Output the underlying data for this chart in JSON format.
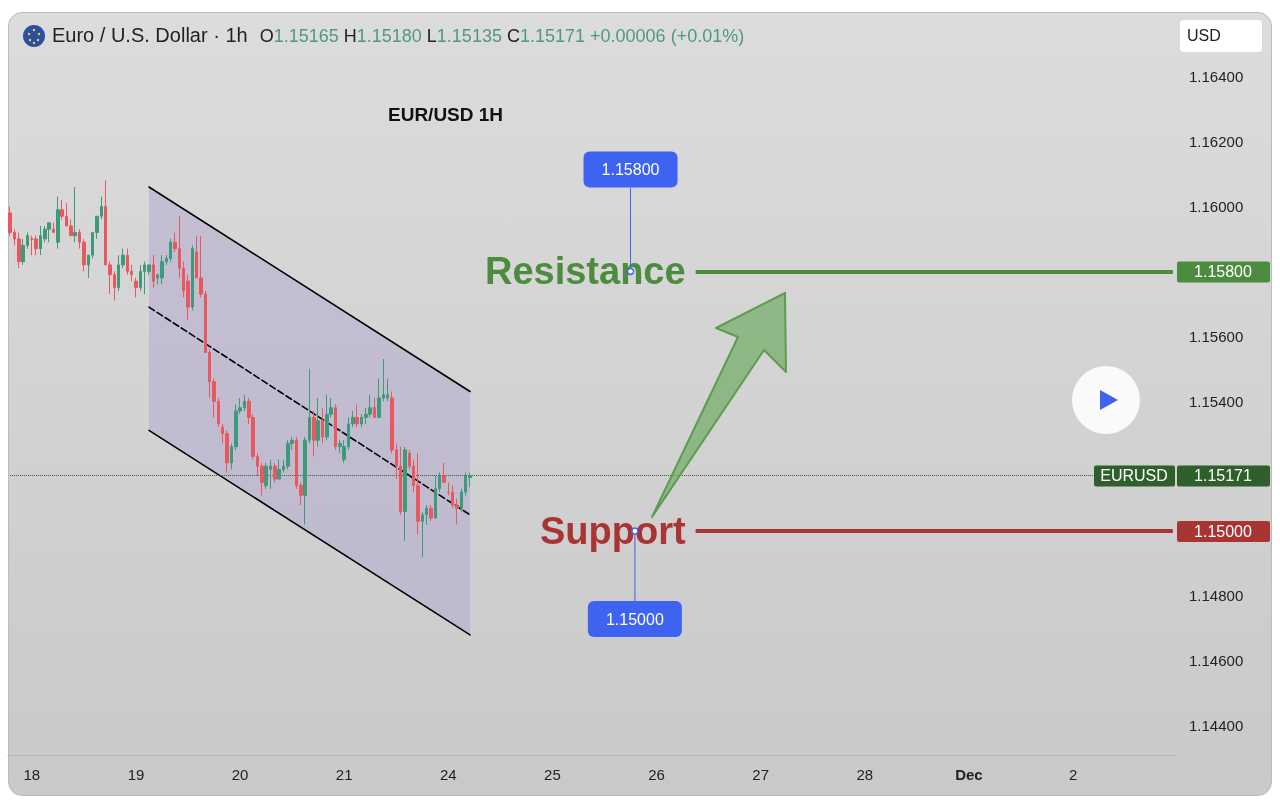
{
  "chart_data": {
    "type": "candlestick",
    "title": "EUR/USD 1H",
    "subtitle": "Euro / U.S. Dollar · 1h",
    "annotations": [
      "O1.15165 H1.15180 L1.15135 C1.15171 +0.00006 (+0.01%)",
      "USD",
      "1.15800",
      "1.15000",
      "1.15171"
    ],
    "categories": [
      null,
      null,
      null,
      null,
      null,
      "18",
      null,
      null,
      null,
      null,
      null,
      null,
      null,
      null,
      null,
      null,
      null,
      null,
      null,
      null,
      null,
      null,
      null,
      null,
      null,
      null,
      null,
      null,
      null,
      "19",
      null,
      null,
      null,
      null,
      null,
      null,
      null,
      null,
      null,
      null,
      null,
      null,
      null,
      null,
      null,
      null,
      null,
      null,
      null,
      null,
      null,
      null,
      null,
      "20",
      null,
      null,
      null,
      null,
      null,
      null,
      null,
      null,
      null,
      null,
      null,
      null,
      null,
      null,
      null,
      null,
      null,
      null,
      null,
      null,
      null,
      null,
      null,
      "21",
      null,
      null,
      null,
      null,
      null,
      null,
      null,
      null,
      null,
      null,
      null,
      null,
      null,
      null,
      null,
      null,
      null,
      null,
      null,
      null,
      null,
      null,
      null,
      "24",
      null,
      null,
      null,
      null,
      null,
      null,
      null,
      null,
      null,
      null,
      null,
      null,
      null,
      null,
      null,
      null,
      null,
      null,
      null,
      null,
      null,
      null,
      null,
      "25",
      null,
      null,
      null,
      null,
      null,
      null,
      null,
      null,
      null,
      null,
      null,
      null,
      null,
      null,
      null,
      null,
      null,
      null,
      null,
      null,
      null,
      null,
      null,
      "26",
      null,
      null,
      null,
      null,
      null,
      null,
      null,
      null,
      null,
      null,
      null,
      null,
      null,
      null,
      null,
      null,
      null,
      null,
      null,
      null,
      null,
      null,
      null,
      "27",
      null,
      null,
      null,
      null,
      null,
      null,
      null,
      null,
      null,
      null,
      null,
      null,
      null,
      null,
      null,
      null,
      null,
      null,
      null,
      null,
      null,
      null,
      null,
      "28",
      null,
      null,
      null,
      null,
      null,
      null,
      null,
      null,
      null,
      null,
      null,
      null,
      null,
      null,
      null,
      null,
      null,
      null,
      null,
      null,
      null,
      null,
      null,
      "Dec",
      null,
      null,
      null,
      null,
      null,
      null,
      null,
      null,
      null,
      null,
      null,
      null,
      null,
      null,
      null,
      null,
      null,
      null,
      null,
      null,
      null,
      null,
      null,
      "2",
      null,
      null,
      null,
      null,
      null,
      null,
      null,
      null,
      null,
      null,
      null,
      null,
      null,
      null,
      null,
      null,
      null,
      null,
      null,
      null,
      null,
      null,
      null
    ],
    "ylim": [
      1.1431,
      1.1659
    ],
    "yticks": [
      {
        "value": 1.144,
        "label": "1.14400"
      },
      {
        "value": 1.146,
        "label": "1.14600"
      },
      {
        "value": 1.148,
        "label": "1.14800"
      },
      {
        "value": 1.154,
        "label": "1.15400"
      },
      {
        "value": 1.156,
        "label": "1.15600"
      },
      {
        "value": 1.16,
        "label": "1.16000"
      },
      {
        "value": 1.162,
        "label": "1.16200"
      },
      {
        "value": 1.164,
        "label": "1.16400"
      }
    ],
    "ohlc": [
      [
        1.1598,
        1.16,
        1.1591,
        1.1592
      ],
      [
        1.1592,
        1.1593,
        1.1588,
        1.159
      ],
      [
        1.159,
        1.1592,
        1.1581,
        1.1583
      ],
      [
        1.1583,
        1.159,
        1.1582,
        1.1588
      ],
      [
        1.1588,
        1.1592,
        1.1587,
        1.1591
      ],
      [
        1.159,
        1.1591,
        1.1585,
        1.159
      ],
      [
        1.159,
        1.1591,
        1.1585,
        1.1587
      ],
      [
        1.1587,
        1.1594,
        1.1585,
        1.1591
      ],
      [
        1.159,
        1.1594,
        1.1589,
        1.1593
      ],
      [
        1.1593,
        1.1595,
        1.1589,
        1.1595
      ],
      [
        1.1593,
        1.1595,
        1.1592,
        1.1592
      ],
      [
        1.1589,
        1.1603,
        1.1587,
        1.1599
      ],
      [
        1.1599,
        1.1602,
        1.1596,
        1.1597
      ],
      [
        1.1597,
        1.1601,
        1.1594,
        1.1594
      ],
      [
        1.1594,
        1.1596,
        1.1591,
        1.1591
      ],
      [
        1.1591,
        1.1606,
        1.1589,
        1.1592
      ],
      [
        1.1592,
        1.1593,
        1.1587,
        1.1589
      ],
      [
        1.1589,
        1.159,
        1.158,
        1.1582
      ],
      [
        1.1582,
        1.1585,
        1.1578,
        1.1585
      ],
      [
        1.1585,
        1.1592,
        1.1584,
        1.1592
      ],
      [
        1.1592,
        1.1597,
        1.159,
        1.1597
      ],
      [
        1.1597,
        1.1603,
        1.1596,
        1.16
      ],
      [
        1.16,
        1.1608,
        1.1582,
        1.1582
      ],
      [
        1.1582,
        1.1583,
        1.1573,
        1.1579
      ],
      [
        1.1579,
        1.158,
        1.1571,
        1.1575
      ],
      [
        1.1575,
        1.1585,
        1.1574,
        1.1582
      ],
      [
        1.1582,
        1.1587,
        1.1581,
        1.1585
      ],
      [
        1.1585,
        1.1587,
        1.1579,
        1.158
      ],
      [
        1.158,
        1.1582,
        1.1577,
        1.1579
      ],
      [
        1.1577,
        1.1578,
        1.1572,
        1.1575
      ],
      [
        1.1575,
        1.1582,
        1.1574,
        1.158
      ],
      [
        1.158,
        1.1583,
        1.1573,
        1.1582
      ],
      [
        1.158,
        1.1582,
        1.1579,
        1.1582
      ],
      [
        1.1582,
        1.1585,
        1.1575,
        1.1577
      ],
      [
        1.1578,
        1.1579,
        1.1576,
        1.1579
      ],
      [
        1.1578,
        1.1585,
        1.1576,
        1.1583
      ],
      [
        1.1583,
        1.1585,
        1.1582,
        1.1584
      ],
      [
        1.1584,
        1.159,
        1.1583,
        1.1589
      ],
      [
        1.1589,
        1.1592,
        1.1586,
        1.1587
      ],
      [
        1.1587,
        1.1597,
        1.1578,
        1.1581
      ],
      [
        1.1581,
        1.1583,
        1.1572,
        1.1574
      ],
      [
        1.1577,
        1.1579,
        1.1565,
        1.1569
      ],
      [
        1.1569,
        1.1588,
        1.1568,
        1.1587
      ],
      [
        1.1586,
        1.1591,
        1.1578,
        1.1578
      ],
      [
        1.1578,
        1.1591,
        1.1572,
        1.1573
      ],
      [
        1.1573,
        1.1574,
        1.1555,
        1.1555
      ],
      [
        1.1555,
        1.1556,
        1.1541,
        1.1546
      ],
      [
        1.1546,
        1.1547,
        1.1535,
        1.154
      ],
      [
        1.154,
        1.1541,
        1.1532,
        1.1533
      ],
      [
        1.1532,
        1.1533,
        1.1527,
        1.153
      ],
      [
        1.153,
        1.1531,
        1.1518,
        1.1521
      ],
      [
        1.1521,
        1.1527,
        1.1519,
        1.1526
      ],
      [
        1.1526,
        1.1539,
        1.1525,
        1.1537
      ],
      [
        1.1537,
        1.1541,
        1.1536,
        1.1538
      ],
      [
        1.1538,
        1.1542,
        1.1537,
        1.154
      ],
      [
        1.154,
        1.1541,
        1.1533,
        1.1535
      ],
      [
        1.1535,
        1.1536,
        1.1522,
        1.1523
      ],
      [
        1.1523,
        1.1524,
        1.1517,
        1.152
      ],
      [
        1.152,
        1.1521,
        1.1511,
        1.1515
      ],
      [
        1.1514,
        1.1521,
        1.1513,
        1.152
      ],
      [
        1.1519,
        1.1522,
        1.1513,
        1.152
      ],
      [
        1.152,
        1.1521,
        1.1515,
        1.1516
      ],
      [
        1.1516,
        1.1522,
        1.1516,
        1.1519
      ],
      [
        1.1519,
        1.1522,
        1.1518,
        1.152
      ],
      [
        1.152,
        1.1528,
        1.1519,
        1.1527
      ],
      [
        1.1527,
        1.1529,
        1.1525,
        1.1528
      ],
      [
        1.1528,
        1.1529,
        1.1513,
        1.1514
      ],
      [
        1.1514,
        1.1515,
        1.1508,
        1.1511
      ],
      [
        1.1511,
        1.1529,
        1.1502,
        1.1528
      ],
      [
        1.1528,
        1.155,
        1.1527,
        1.1535
      ],
      [
        1.1535,
        1.1537,
        1.1523,
        1.1528
      ],
      [
        1.1528,
        1.1541,
        1.1526,
        1.1534
      ],
      [
        1.1534,
        1.1538,
        1.1527,
        1.1529
      ],
      [
        1.1529,
        1.1542,
        1.1528,
        1.1536
      ],
      [
        1.1536,
        1.1541,
        1.1535,
        1.1538
      ],
      [
        1.1538,
        1.1539,
        1.1525,
        1.1526
      ],
      [
        1.1526,
        1.1528,
        1.1524,
        1.1527
      ],
      [
        1.1522,
        1.1528,
        1.1521,
        1.1526
      ],
      [
        1.1526,
        1.1535,
        1.1525,
        1.1533
      ],
      [
        1.1533,
        1.1537,
        1.1532,
        1.1535
      ],
      [
        1.1535,
        1.1539,
        1.1532,
        1.1533
      ],
      [
        1.1533,
        1.1536,
        1.1532,
        1.1535
      ],
      [
        1.1535,
        1.1538,
        1.1533,
        1.1536
      ],
      [
        1.1536,
        1.1542,
        1.1535,
        1.1538
      ],
      [
        1.1538,
        1.1541,
        1.1535,
        1.1535
      ],
      [
        1.1535,
        1.1547,
        1.1535,
        1.1541
      ],
      [
        1.1541,
        1.1553,
        1.154,
        1.1542
      ],
      [
        1.1541,
        1.1547,
        1.154,
        1.1542
      ],
      [
        1.1541,
        1.1543,
        1.1524,
        1.1525
      ],
      [
        1.1525,
        1.1527,
        1.1516,
        1.152
      ],
      [
        1.152,
        1.1526,
        1.1505,
        1.1506
      ],
      [
        1.1506,
        1.1526,
        1.1497,
        1.1525
      ],
      [
        1.1524,
        1.1525,
        1.1519,
        1.152
      ],
      [
        1.152,
        1.1522,
        1.1512,
        1.1514
      ],
      [
        1.1514,
        1.1524,
        1.1499,
        1.1503
      ],
      [
        1.1503,
        1.1506,
        1.1492,
        1.1505
      ],
      [
        1.1505,
        1.1508,
        1.1502,
        1.1507
      ],
      [
        1.1507,
        1.1508,
        1.1503,
        1.1504
      ],
      [
        1.1504,
        1.1517,
        1.1504,
        1.1513
      ],
      [
        1.1513,
        1.1518,
        1.1512,
        1.1517
      ],
      [
        1.1517,
        1.1521,
        1.1515,
        1.1515
      ],
      [
        1.1512,
        1.1515,
        1.1511,
        1.1512
      ],
      [
        1.1512,
        1.1514,
        1.1507,
        1.1508
      ],
      [
        1.1508,
        1.151,
        1.1502,
        1.1507
      ],
      [
        1.1507,
        1.1513,
        1.1506,
        1.1512
      ],
      [
        1.1512,
        1.1518,
        1.1511,
        1.1517
      ],
      [
        1.15165,
        1.1518,
        1.15135,
        1.15171
      ],
      null,
      null,
      null,
      null,
      null,
      null,
      null,
      null,
      null,
      null,
      null,
      null,
      null,
      null,
      null,
      null,
      null,
      null,
      null,
      null,
      null,
      null,
      null,
      null,
      null,
      null,
      null,
      null,
      null,
      null,
      null,
      null,
      null,
      null,
      null,
      null,
      null,
      null,
      null,
      null,
      null,
      null,
      null,
      null,
      null,
      null,
      null,
      null,
      null,
      null,
      null,
      null,
      null,
      null,
      null,
      null,
      null,
      null,
      null,
      null,
      null,
      null,
      null,
      null,
      null,
      null,
      null,
      null,
      null,
      null,
      null,
      null,
      null,
      null,
      null,
      null,
      null,
      null,
      null,
      null,
      null,
      null,
      null,
      null,
      null,
      null,
      null,
      null,
      null,
      null,
      null,
      null,
      null,
      null,
      null,
      null,
      null,
      null,
      null,
      null,
      null,
      null,
      null,
      null,
      null,
      null,
      null,
      null,
      null,
      null,
      null,
      null,
      null,
      null,
      null,
      null,
      null,
      null,
      null,
      null,
      null,
      null,
      null,
      null,
      null,
      null,
      null,
      null,
      null,
      null,
      null,
      null,
      null,
      null,
      null,
      null,
      null,
      null,
      null,
      null,
      null,
      null,
      null,
      null,
      null,
      null,
      null,
      null,
      null,
      null,
      null,
      null,
      null,
      null,
      null,
      null,
      null,
      null,
      null,
      null,
      null,
      null
    ],
    "series": [
      {
        "type": "line",
        "color": "#000000",
        "line_style": "dashed",
        "values": [
          null,
          null,
          null,
          null,
          null,
          null,
          null,
          null,
          null,
          null,
          null,
          null,
          null,
          null,
          null,
          null,
          null,
          null,
          null,
          null,
          null,
          null,
          null,
          null,
          null,
          null,
          null,
          null,
          null,
          null,
          null,
          null,
          1.1569,
          null,
          null,
          null,
          null,
          null,
          null,
          null,
          null,
          null,
          null,
          null,
          null,
          null,
          null,
          null,
          null,
          null,
          null,
          null,
          null,
          null,
          null,
          null,
          null,
          null,
          null,
          null,
          null,
          null,
          null,
          null,
          null,
          null,
          null,
          null,
          null,
          null,
          null,
          null,
          null,
          null,
          null,
          null,
          null,
          null,
          null,
          null,
          null,
          null,
          null,
          null,
          null,
          null,
          null,
          null,
          null,
          null,
          null,
          null,
          null,
          null,
          null,
          null,
          null,
          null,
          null,
          null,
          null,
          null,
          null,
          null,
          null,
          null,
          1.1505,
          null,
          null,
          null,
          null,
          null,
          null,
          null,
          null,
          null,
          null,
          null,
          null,
          null,
          null,
          null,
          null,
          null,
          null,
          null,
          null,
          null,
          null,
          null,
          null,
          null,
          null,
          null,
          null,
          null,
          null,
          null,
          null,
          null,
          null,
          null,
          null,
          null,
          null,
          null,
          null,
          null,
          null,
          null,
          null,
          null,
          null,
          null,
          null,
          null,
          null,
          null,
          null,
          null,
          null,
          null,
          null,
          null,
          null,
          null,
          null,
          null,
          null,
          null,
          null,
          null,
          null,
          null,
          null,
          null,
          null,
          null,
          null,
          null,
          null,
          null,
          null,
          null,
          null,
          null,
          null,
          null,
          null,
          null,
          null,
          null,
          null,
          null,
          null,
          null,
          null,
          null,
          null,
          null,
          null,
          null,
          null,
          null,
          null,
          null,
          null,
          null,
          null,
          null,
          null,
          null,
          null,
          null,
          null,
          null,
          null,
          null,
          null,
          null,
          null,
          null,
          null,
          null,
          null,
          null,
          null,
          null,
          null,
          null,
          null,
          null,
          null,
          null,
          null,
          null,
          null,
          null,
          null,
          null,
          null,
          null,
          null,
          null,
          null,
          null,
          null,
          null,
          null,
          null,
          null,
          null,
          null,
          null,
          null,
          null,
          null,
          null,
          null,
          null,
          null,
          null,
          null,
          null,
          null,
          null,
          null,
          null,
          null
        ],
        "lower": [
          null,
          null,
          null,
          null,
          null,
          null,
          null,
          null,
          null,
          null,
          null,
          null,
          null,
          null,
          null,
          null,
          null,
          null,
          null,
          null,
          null,
          null,
          null,
          null,
          null,
          null,
          null,
          null,
          null,
          null,
          null,
          null,
          1.1531,
          null,
          null,
          null,
          null,
          null,
          null,
          null,
          null,
          null,
          null,
          null,
          null,
          null,
          null,
          null,
          null,
          null,
          null,
          null,
          null,
          null,
          null,
          null,
          null,
          null,
          null,
          null,
          null,
          null,
          null,
          null,
          null,
          null,
          null,
          null,
          null,
          null,
          null,
          null,
          null,
          null,
          null,
          null,
          null,
          null,
          null,
          null,
          null,
          null,
          null,
          null,
          null,
          null,
          null,
          null,
          null,
          null,
          null,
          null,
          null,
          null,
          null,
          null,
          null,
          null,
          null,
          null,
          null,
          null,
          null,
          null,
          null,
          null,
          1.1468,
          null,
          null,
          null,
          null,
          null,
          null,
          null,
          null,
          null,
          null,
          null,
          null,
          null,
          null,
          null,
          null,
          null,
          null,
          null,
          null,
          null,
          null,
          null,
          null,
          null,
          null,
          null,
          null,
          null,
          null,
          null,
          null,
          null,
          null,
          null,
          null,
          null,
          null,
          null,
          null,
          null,
          null,
          null,
          null,
          null,
          null,
          null,
          null,
          null,
          null,
          null,
          null,
          null,
          null,
          null,
          null,
          null,
          null,
          null,
          null,
          null,
          null,
          null,
          null,
          null,
          null,
          null,
          null,
          null,
          null,
          null,
          null,
          null,
          null,
          null,
          null,
          null,
          null,
          null,
          null,
          null,
          null,
          null,
          null,
          null,
          null,
          null,
          null,
          null,
          null,
          null,
          null,
          null,
          null,
          null,
          null,
          null,
          null,
          null,
          null,
          null,
          null,
          null,
          null,
          null,
          null,
          null,
          null,
          null,
          null,
          null,
          null,
          null,
          null,
          null,
          null,
          null,
          null,
          null,
          null,
          null,
          null,
          null,
          null,
          null,
          null,
          null,
          null,
          null,
          null,
          null,
          null,
          null,
          null,
          null,
          null,
          null,
          null,
          null,
          null,
          null,
          null,
          null,
          null,
          null,
          null,
          null,
          null,
          null,
          null,
          null,
          null,
          null,
          null,
          null,
          null,
          null,
          null,
          null,
          null,
          null,
          null
        ],
        "upper": [
          null,
          null,
          null,
          null,
          null,
          null,
          null,
          null,
          null,
          null,
          null,
          null,
          null,
          null,
          null,
          null,
          null,
          null,
          null,
          null,
          null,
          null,
          null,
          null,
          null,
          null,
          null,
          null,
          null,
          null,
          null,
          null,
          1.1606,
          null,
          null,
          null,
          null,
          null,
          null,
          null,
          null,
          null,
          null,
          null,
          null,
          null,
          null,
          null,
          null,
          null,
          null,
          null,
          null,
          null,
          null,
          null,
          null,
          null,
          null,
          null,
          null,
          null,
          null,
          null,
          null,
          null,
          null,
          null,
          null,
          null,
          null,
          null,
          null,
          null,
          null,
          null,
          null,
          null,
          null,
          null,
          null,
          null,
          null,
          null,
          null,
          null,
          null,
          null,
          null,
          null,
          null,
          null,
          null,
          null,
          null,
          null,
          null,
          null,
          null,
          null,
          null,
          null,
          null,
          null,
          null,
          null,
          1.1543,
          null,
          null,
          null,
          null,
          null,
          null,
          null,
          null,
          null,
          null,
          null,
          null,
          null,
          null,
          null,
          null,
          null,
          null,
          null,
          null,
          null,
          null,
          null,
          null,
          null,
          null,
          null,
          null,
          null,
          null,
          null,
          null,
          null,
          null,
          null,
          null,
          null,
          null,
          null,
          null,
          null,
          null,
          null,
          null,
          null,
          null,
          null,
          null,
          null,
          null,
          null,
          null,
          null,
          null,
          null,
          null,
          null,
          null,
          null,
          null,
          null,
          null,
          null,
          null,
          null,
          null,
          null,
          null,
          null,
          null,
          null,
          null,
          null,
          null,
          null,
          null,
          null,
          null,
          null,
          null,
          null,
          null,
          null,
          null,
          null,
          null,
          null,
          null,
          null,
          null,
          null,
          null,
          null,
          null,
          null,
          null,
          null,
          null,
          null,
          null,
          null,
          null,
          null,
          null,
          null,
          null,
          null,
          null,
          null,
          null,
          null,
          null,
          null,
          null,
          null,
          null,
          null,
          null,
          null,
          null,
          null,
          null,
          null,
          null,
          null,
          null,
          null,
          null,
          null,
          null,
          null,
          null,
          null,
          null,
          null,
          null,
          null,
          null,
          null,
          null,
          null,
          null,
          null,
          null,
          null,
          null,
          null,
          null,
          null,
          null,
          null,
          null,
          null,
          null,
          null,
          null,
          null,
          null,
          null,
          null,
          null,
          null
        ]
      },
      {
        "type": "line",
        "color": "#000000",
        "line_style": "solid",
        "values": [
          null,
          null,
          null,
          null,
          null,
          null,
          null,
          null,
          null,
          null,
          null,
          null,
          null,
          null,
          null,
          null,
          null,
          null,
          null,
          null,
          null,
          null,
          null,
          null,
          null,
          null,
          null,
          null,
          null,
          null,
          null,
          null,
          1.1606,
          null,
          null,
          null,
          null,
          null,
          null,
          null,
          null,
          null,
          null,
          null,
          null,
          null,
          null,
          null,
          null,
          null,
          null,
          null,
          null,
          null,
          null,
          null,
          null,
          null,
          null,
          null,
          null,
          null,
          null,
          null,
          null,
          null,
          null,
          null,
          null,
          null,
          null,
          null,
          null,
          null,
          null,
          null,
          null,
          null,
          null,
          null,
          null,
          null,
          null,
          null,
          null,
          null,
          null,
          null,
          null,
          null,
          null,
          null,
          null,
          null,
          null,
          null,
          null,
          null,
          null,
          null,
          null,
          null,
          null,
          null,
          null,
          null,
          1.1543,
          null,
          null,
          null,
          null,
          null,
          null,
          null,
          null,
          null,
          null,
          null,
          null,
          null,
          null,
          null,
          null,
          null,
          null,
          null,
          null,
          null,
          null,
          null,
          null,
          null,
          null,
          null,
          null,
          null,
          null,
          null,
          null,
          null,
          null,
          null,
          null,
          null,
          null,
          null,
          null,
          null,
          null,
          null,
          null,
          null,
          null,
          null,
          null,
          null,
          null,
          null,
          null,
          null,
          null,
          null,
          null,
          null,
          null,
          null,
          null,
          null,
          null,
          null,
          null,
          null,
          null,
          null,
          null,
          null,
          null,
          null,
          null,
          null,
          null,
          null,
          null,
          null,
          null,
          null,
          null,
          null,
          null,
          null,
          null,
          null,
          null,
          null,
          null,
          null,
          null,
          null,
          null,
          null,
          null,
          null,
          null,
          null,
          null,
          null,
          null,
          null,
          null,
          null,
          null,
          null,
          null,
          null,
          null,
          null,
          null,
          null,
          null,
          null,
          null,
          null,
          null,
          null,
          null,
          null,
          null,
          null,
          null,
          null,
          null,
          null,
          null,
          null,
          null,
          null,
          null,
          null,
          null,
          null,
          null,
          null,
          null,
          null,
          null,
          null,
          null,
          null,
          null,
          null,
          null,
          null,
          null,
          null,
          null,
          null,
          null,
          null,
          null,
          null,
          null,
          null,
          null,
          null,
          null,
          null,
          null,
          null,
          null
        ]
      },
      {
        "type": "line",
        "color": "#000000",
        "line_style": "solid",
        "values": [
          null,
          null,
          null,
          null,
          null,
          null,
          null,
          null,
          null,
          null,
          null,
          null,
          null,
          null,
          null,
          null,
          null,
          null,
          null,
          null,
          null,
          null,
          null,
          null,
          null,
          null,
          null,
          null,
          null,
          null,
          null,
          null,
          1.1531,
          null,
          null,
          null,
          null,
          null,
          null,
          null,
          null,
          null,
          null,
          null,
          null,
          null,
          null,
          null,
          null,
          null,
          null,
          null,
          null,
          null,
          null,
          null,
          null,
          null,
          null,
          null,
          null,
          null,
          null,
          null,
          null,
          null,
          null,
          null,
          null,
          null,
          null,
          null,
          null,
          null,
          null,
          null,
          null,
          null,
          null,
          null,
          null,
          null,
          null,
          null,
          null,
          null,
          null,
          null,
          null,
          null,
          null,
          null,
          null,
          null,
          null,
          null,
          null,
          null,
          null,
          null,
          null,
          null,
          null,
          null,
          null,
          null,
          1.1468,
          null,
          null,
          null,
          null,
          null,
          null,
          null,
          null,
          null,
          null,
          null,
          null,
          null,
          null,
          null,
          null,
          null,
          null,
          null,
          null,
          null,
          null,
          null,
          null,
          null,
          null,
          null,
          null,
          null,
          null,
          null,
          null,
          null,
          null,
          null,
          null,
          null,
          null,
          null,
          null,
          null,
          null,
          null,
          null,
          null,
          null,
          null,
          null,
          null,
          null,
          null,
          null,
          null,
          null,
          null,
          null,
          null,
          null,
          null,
          null,
          null,
          null,
          null,
          null,
          null,
          null,
          null,
          null,
          null,
          null,
          null,
          null,
          null,
          null,
          null,
          null,
          null,
          null,
          null,
          null,
          null,
          null,
          null,
          null,
          null,
          null,
          null,
          null,
          null,
          null,
          null,
          null,
          null,
          null,
          null,
          null,
          null,
          null,
          null,
          null,
          null,
          null,
          null,
          null,
          null,
          null,
          null,
          null,
          null,
          null,
          null,
          null,
          null,
          null,
          null,
          null,
          null,
          null,
          null,
          null,
          null,
          null,
          null,
          null,
          null,
          null,
          null,
          null,
          null,
          null,
          null,
          null,
          null,
          null,
          null,
          null,
          null,
          null,
          null,
          null,
          null,
          null,
          null,
          null,
          null,
          null,
          null,
          null,
          null,
          null,
          null,
          null,
          null,
          null,
          null,
          null,
          null,
          null,
          null,
          null,
          null,
          null
        ]
      }
    ],
    "ref_lines": [
      {
        "axis": "y",
        "value": 1.158,
        "label": "Resistance",
        "color": "#4d8c3e",
        "line_style": "solid"
      },
      {
        "axis": "y",
        "value": 1.15,
        "label": "Support",
        "color": "#a83434",
        "line_style": "solid"
      },
      {
        "axis": "y",
        "value": 1.15171,
        "label": "EURUSD",
        "color": "#2f5f2a",
        "line_style": "dotted"
      }
    ]
  }
}
